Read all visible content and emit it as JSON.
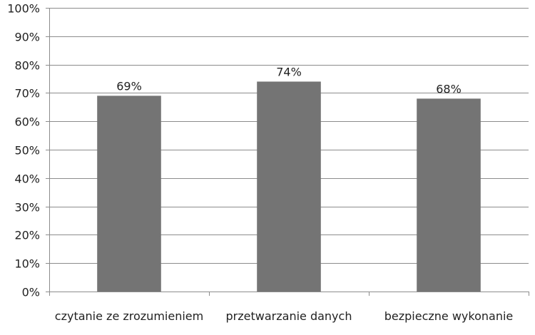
{
  "chart_data": {
    "type": "bar",
    "title": "",
    "xlabel": "",
    "ylabel": "",
    "categories": [
      "czytanie ze zrozumieniem",
      "przetwarzanie danych",
      "bezpieczne wykonanie"
    ],
    "values": [
      69,
      74,
      68
    ],
    "data_labels": [
      "69%",
      "74%",
      "68%"
    ],
    "ylim": [
      0,
      100
    ],
    "yticks": [
      0,
      10,
      20,
      30,
      40,
      50,
      60,
      70,
      80,
      90,
      100
    ],
    "ytick_labels": [
      "0%",
      "10%",
      "20%",
      "30%",
      "40%",
      "50%",
      "60%",
      "70%",
      "80%",
      "90%",
      "100%"
    ],
    "grid": true,
    "legend": "none",
    "bar_color": "#747474",
    "grid_color": "#8c8c8c"
  }
}
